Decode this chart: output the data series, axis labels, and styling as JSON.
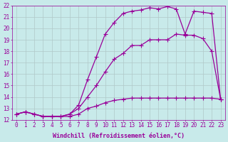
{
  "xlabel": "Windchill (Refroidissement éolien,°C)",
  "background_color": "#c8eaea",
  "line_color": "#990099",
  "grid_color": "#b0c8c8",
  "xlim": [
    -0.5,
    23.5
  ],
  "ylim": [
    12,
    22
  ],
  "xticks": [
    0,
    1,
    2,
    3,
    4,
    5,
    6,
    7,
    8,
    9,
    10,
    11,
    12,
    13,
    14,
    15,
    16,
    17,
    18,
    19,
    20,
    21,
    22,
    23
  ],
  "yticks": [
    12,
    13,
    14,
    15,
    16,
    17,
    18,
    19,
    20,
    21,
    22
  ],
  "line1_x": [
    0,
    1,
    2,
    3,
    4,
    5,
    6,
    7,
    8,
    9,
    10,
    11,
    12,
    13,
    14,
    15,
    16,
    17,
    18,
    19,
    20,
    21,
    22,
    23
  ],
  "line1_y": [
    12.5,
    12.7,
    12.5,
    12.3,
    12.3,
    12.3,
    12.3,
    12.5,
    13.0,
    13.2,
    13.5,
    13.7,
    13.8,
    13.9,
    13.9,
    13.9,
    13.9,
    13.9,
    13.9,
    13.9,
    13.9,
    13.9,
    13.9,
    13.8
  ],
  "line2_x": [
    0,
    1,
    2,
    3,
    4,
    5,
    6,
    7,
    8,
    9,
    10,
    11,
    12,
    13,
    14,
    15,
    16,
    17,
    18,
    19,
    20,
    21,
    22,
    23
  ],
  "line2_y": [
    12.5,
    12.7,
    12.5,
    12.3,
    12.3,
    12.3,
    12.5,
    13.0,
    14.0,
    15.0,
    16.2,
    17.3,
    17.8,
    18.5,
    18.5,
    19.0,
    19.0,
    19.0,
    19.5,
    19.4,
    19.4,
    19.1,
    18.0,
    13.8
  ],
  "line3_x": [
    0,
    1,
    2,
    3,
    4,
    5,
    6,
    7,
    8,
    9,
    10,
    11,
    12,
    13,
    14,
    15,
    16,
    17,
    18,
    19,
    20,
    21,
    22,
    23
  ],
  "line3_y": [
    12.5,
    12.7,
    12.5,
    12.3,
    12.3,
    12.3,
    12.5,
    13.3,
    15.5,
    17.5,
    19.5,
    20.5,
    21.3,
    21.5,
    21.6,
    21.8,
    21.7,
    21.9,
    21.7,
    19.5,
    21.5,
    21.4,
    21.3,
    13.8
  ],
  "marker": "+",
  "markersize": 4,
  "linewidth": 0.9,
  "tick_fontsize": 5.5,
  "label_fontsize": 6.0
}
